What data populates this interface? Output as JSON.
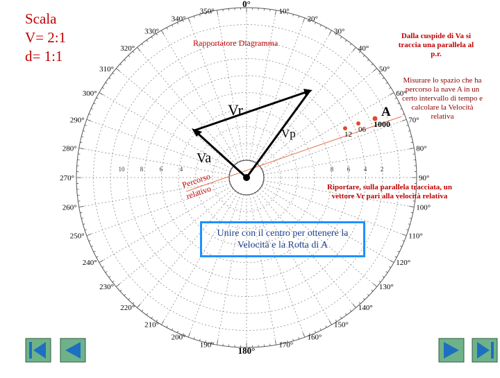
{
  "scale_block": {
    "line1": "Scala",
    "line2": "V= 2:1",
    "line3": "d= 1:1"
  },
  "diagram_title": "Rapportatore Diagramma",
  "compass": {
    "bearings": [
      "0°",
      "10°",
      "20°",
      "30°",
      "40°",
      "50°",
      "60°",
      "70°",
      "80°",
      "90°",
      "100°",
      "110°",
      "120°",
      "130°",
      "140°",
      "150°",
      "160°",
      "170°",
      "180°",
      "190°",
      "200°",
      "210°",
      "220°",
      "230°",
      "240°",
      "250°",
      "260°",
      "270°",
      "280°",
      "290°",
      "300°",
      "310°",
      "320°",
      "330°",
      "340°",
      "350°"
    ],
    "left_scale": [
      "10",
      "8",
      "6",
      "4"
    ],
    "right_scale": [
      "8",
      "6",
      "4",
      "2"
    ]
  },
  "vectors": {
    "vr_label": "Vr",
    "vp_label": "Vp",
    "va_label": "Va",
    "percorso_line1": "Percorso",
    "percorso_line2": "relativo"
  },
  "ship_a": {
    "label": "A",
    "time_12": "12",
    "time_06": "06",
    "time_1000": "1000"
  },
  "notes": {
    "top_right": "Dalla cuspide di Va si traccia una parallela al p.r.",
    "misurare": "Misurare lo spazio che ha percorso la nave A in un certo intervallo di tempo e calcolare la Velocità relativa",
    "riportare": "Riportare, sulla parallela tracciata, un vettore Vr pari alla velocità relativa",
    "unire": "Unire con il centro per ottenere la Velocità e la Rotta di A"
  },
  "colors": {
    "grid": "#8c8c8c",
    "accent": "#c00000",
    "vector": "#000000",
    "relative_track": "#e6704a",
    "box_border": "#1e90ff",
    "nav_green": "#2e8b57",
    "nav_blue": "#1e6fbf"
  },
  "nav_buttons": [
    {
      "name": "first-slide-button",
      "icon": "skip-back-icon"
    },
    {
      "name": "previous-slide-button",
      "icon": "triangle-left-icon"
    },
    {
      "name": "next-slide-button",
      "icon": "triangle-right-icon"
    },
    {
      "name": "last-slide-button",
      "icon": "skip-forward-icon"
    }
  ]
}
